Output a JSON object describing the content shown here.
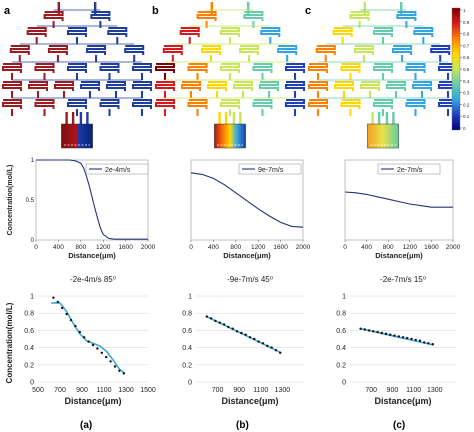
{
  "panel_letters": [
    "a",
    "b",
    "c"
  ],
  "bottom_letters": [
    "(a)",
    "(b)",
    "(c)"
  ],
  "colorbar": {
    "ticks": [
      "1",
      "0.9",
      "0.8",
      "0.7",
      "0.6",
      "0.5",
      "0.4",
      "0.3",
      "0.2",
      "0.1",
      "0"
    ],
    "stops": [
      "#7f0000",
      "#d7191c",
      "#ff7f00",
      "#ffd700",
      "#c8e65a",
      "#66ccaa",
      "#33a6e0",
      "#1f3fbf",
      "#00007f"
    ]
  },
  "colors": {
    "curve": "#2a2f7a",
    "fit": "#3fa7d6",
    "dots": "#111111",
    "high": "#b3141c",
    "low": "#1a3fa8",
    "tree_a_left": "#9b1b20",
    "tree_a_right": "#1f3d9a"
  },
  "chart_data": [
    {
      "type": "line",
      "legend": "2e-4m/s",
      "xlabel": "Distance(μm)",
      "ylabel": "Concentration(mol/L)",
      "xlim": [
        0,
        2000
      ],
      "ylim": [
        0,
        1
      ],
      "xticks": [
        "0",
        "400",
        "800",
        "1200",
        "1600",
        "2000"
      ],
      "x": [
        0,
        200,
        400,
        600,
        700,
        800,
        850,
        900,
        950,
        1000,
        1050,
        1100,
        1150,
        1200,
        1300,
        1400,
        1600,
        1800,
        2000
      ],
      "y": [
        1.0,
        1.0,
        1.0,
        1.0,
        0.99,
        0.96,
        0.9,
        0.8,
        0.68,
        0.54,
        0.4,
        0.27,
        0.15,
        0.07,
        0.02,
        0.01,
        0.01,
        0.01,
        0.01
      ]
    },
    {
      "type": "line",
      "legend": "9e-7m/s",
      "xlabel": "Distance(μm)",
      "ylabel": "",
      "xlim": [
        0,
        2000
      ],
      "ylim": [
        0,
        1
      ],
      "xticks": [
        "0",
        "400",
        "800",
        "1200",
        "1600",
        "2000"
      ],
      "x": [
        0,
        200,
        400,
        600,
        800,
        1000,
        1200,
        1400,
        1600,
        1800,
        2000
      ],
      "y": [
        0.84,
        0.82,
        0.77,
        0.69,
        0.59,
        0.49,
        0.39,
        0.3,
        0.22,
        0.17,
        0.16
      ]
    },
    {
      "type": "line",
      "legend": "2e-7m/s",
      "xlabel": "Distance(μm)",
      "ylabel": "",
      "xlim": [
        0,
        2000
      ],
      "ylim": [
        0,
        1
      ],
      "xticks": [
        "0",
        "400",
        "800",
        "1200",
        "1600",
        "2000"
      ],
      "x": [
        0,
        200,
        400,
        600,
        800,
        1000,
        1200,
        1400,
        1600,
        1800,
        2000
      ],
      "y": [
        0.6,
        0.59,
        0.57,
        0.54,
        0.51,
        0.48,
        0.45,
        0.43,
        0.41,
        0.41,
        0.41
      ]
    },
    {
      "type": "scatter",
      "title": "-2e-4m/s  85⁰",
      "xlabel": "Distance(μm)",
      "ylabel": "Concentration(mol/L)",
      "xlim": [
        500,
        1500
      ],
      "ylim": [
        0,
        1
      ],
      "xticks": [
        "500",
        "700",
        "900",
        "1100",
        "1300",
        "1500"
      ],
      "yticks": [
        "0",
        "0.2",
        "0.4",
        "0.6",
        "0.8",
        "1"
      ],
      "series": [
        {
          "kind": "dots",
          "x": [
            640,
            680,
            720,
            760,
            800,
            840,
            880,
            920,
            960,
            1000,
            1040,
            1080,
            1120,
            1160,
            1200,
            1240,
            1280
          ],
          "y": [
            0.98,
            0.93,
            0.86,
            0.79,
            0.72,
            0.65,
            0.58,
            0.52,
            0.47,
            0.43,
            0.39,
            0.34,
            0.29,
            0.24,
            0.18,
            0.13,
            0.1
          ]
        },
        {
          "kind": "line",
          "x": [
            620,
            700,
            760,
            820,
            880,
            940,
            1000,
            1060,
            1120,
            1180,
            1240,
            1290
          ],
          "y": [
            0.92,
            0.92,
            0.82,
            0.68,
            0.56,
            0.48,
            0.45,
            0.42,
            0.36,
            0.26,
            0.15,
            0.1
          ]
        }
      ]
    },
    {
      "type": "scatter",
      "title": "-9e-7m/s  45⁰",
      "xlabel": "Distance(μm)",
      "ylabel": "",
      "xlim": [
        500,
        1500
      ],
      "ylim": [
        0,
        1
      ],
      "xticks": [
        "700",
        "900",
        "1100",
        "1300"
      ],
      "yticks": [
        "0",
        "0.2",
        "0.4",
        "0.6",
        "0.8",
        "1"
      ],
      "series": [
        {
          "kind": "dots",
          "x": [
            600,
            640,
            680,
            720,
            760,
            800,
            840,
            880,
            920,
            960,
            1000,
            1040,
            1080,
            1120,
            1160,
            1200,
            1240,
            1280
          ],
          "y": [
            0.76,
            0.74,
            0.71,
            0.69,
            0.67,
            0.64,
            0.62,
            0.59,
            0.57,
            0.55,
            0.52,
            0.5,
            0.47,
            0.45,
            0.42,
            0.4,
            0.37,
            0.34
          ]
        },
        {
          "kind": "line",
          "x": [
            600,
            1290
          ],
          "y": [
            0.76,
            0.34
          ]
        }
      ]
    },
    {
      "type": "scatter",
      "title": "-2e-7m/s  15⁰",
      "xlabel": "Distance(μm)",
      "ylabel": "",
      "xlim": [
        500,
        1500
      ],
      "ylim": [
        0,
        1
      ],
      "xticks": [
        "700",
        "900",
        "1100",
        "1300"
      ],
      "yticks": [
        "0",
        "0.2",
        "0.4",
        "0.6",
        "0.8",
        "1"
      ],
      "series": [
        {
          "kind": "dots",
          "x": [
            600,
            640,
            680,
            720,
            760,
            800,
            840,
            880,
            920,
            960,
            1000,
            1040,
            1080,
            1120,
            1160,
            1200,
            1240,
            1280
          ],
          "y": [
            0.62,
            0.61,
            0.6,
            0.59,
            0.58,
            0.57,
            0.56,
            0.55,
            0.54,
            0.53,
            0.52,
            0.51,
            0.5,
            0.49,
            0.48,
            0.46,
            0.45,
            0.44
          ]
        },
        {
          "kind": "line",
          "x": [
            600,
            1290
          ],
          "y": [
            0.62,
            0.43
          ]
        }
      ]
    }
  ]
}
